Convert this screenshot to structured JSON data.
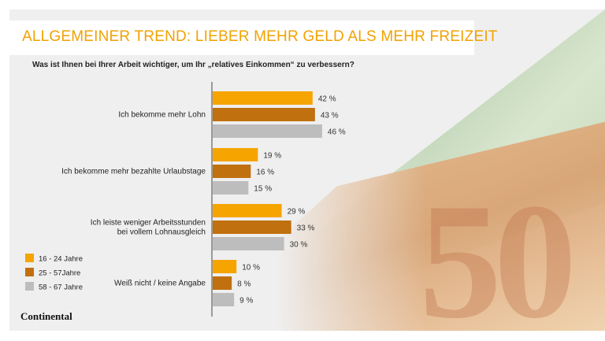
{
  "title": "ALLGEMEINER TREND: LIEBER MEHR GELD ALS MEHR FREIZEIT",
  "logo": "Continental",
  "chart_data": {
    "type": "bar",
    "orientation": "horizontal",
    "title": "Was ist Ihnen bei Ihrer Arbeit wichtiger, um Ihr „relatives Einkommen“ zu verbessern?",
    "categories": [
      "Ich bekomme mehr Lohn",
      "Ich bekomme mehr bezahlte Urlaubstage",
      "Ich leiste weniger Arbeitsstunden\nbei vollem Lohnausgleich",
      "Weiß nicht / keine Angabe"
    ],
    "series": [
      {
        "name": "16 - 24 Jahre",
        "color": "#f5a400",
        "values": [
          42,
          19,
          29,
          10
        ]
      },
      {
        "name": "25 - 57Jahre",
        "color": "#c0700f",
        "values": [
          43,
          16,
          33,
          8
        ]
      },
      {
        "name": "58 - 67 Jahre",
        "color": "#bdbdbd",
        "values": [
          46,
          15,
          30,
          9
        ]
      }
    ],
    "value_suffix": "%",
    "legend": "bottom-left"
  }
}
